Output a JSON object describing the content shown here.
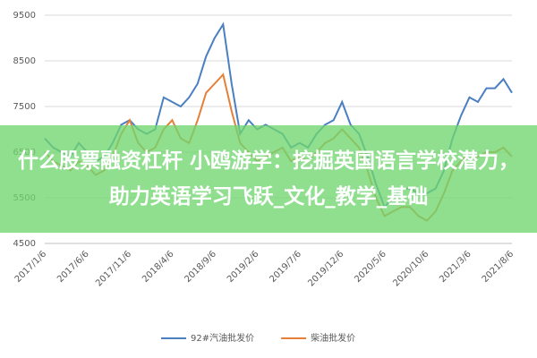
{
  "chart_data": {
    "type": "line",
    "categories": [
      "2017/1/6",
      null,
      null,
      null,
      null,
      "2017/6/6",
      null,
      null,
      null,
      null,
      "2017/11/6",
      null,
      null,
      null,
      null,
      "2018/4/6",
      null,
      null,
      null,
      null,
      "2018/9/6",
      null,
      null,
      null,
      null,
      "2019/2/6",
      null,
      null,
      null,
      null,
      "2019/7/6",
      null,
      null,
      null,
      null,
      "2019/12/6",
      null,
      null,
      null,
      null,
      "2020/5/6",
      null,
      null,
      null,
      null,
      "2020/10/6",
      null,
      null,
      null,
      null,
      "2021/3/6",
      null,
      null,
      null,
      null,
      "2021/8/6"
    ],
    "series": [
      {
        "name": "92#汽油批发价",
        "color": "#4a7fc1",
        "values": [
          6800,
          6600,
          6500,
          6400,
          6700,
          6500,
          6300,
          6400,
          6700,
          7100,
          7200,
          7000,
          6900,
          7000,
          7700,
          7600,
          7500,
          7700,
          8000,
          8600,
          9000,
          9300,
          8000,
          6900,
          7200,
          7000,
          7100,
          7000,
          6900,
          6600,
          6700,
          6600,
          6900,
          7100,
          7200,
          7600,
          7100,
          6900,
          6400,
          5800,
          5300,
          5500,
          5700,
          5700,
          5600,
          5600,
          5700,
          6100,
          6800,
          7300,
          7700,
          7600,
          7900,
          7900,
          8100,
          7800
        ]
      },
      {
        "name": "柴油批发价",
        "color": "#e4803a",
        "values": [
          6500,
          6300,
          6200,
          6100,
          6300,
          6200,
          6000,
          6100,
          6400,
          6900,
          7200,
          6700,
          6500,
          6600,
          7000,
          7200,
          6800,
          6700,
          7200,
          7800,
          8000,
          8200,
          7400,
          6700,
          6500,
          6300,
          6400,
          6500,
          6600,
          6300,
          6400,
          6300,
          6500,
          6700,
          6800,
          7000,
          6800,
          6600,
          6100,
          5500,
          5100,
          5200,
          5300,
          5300,
          5100,
          5000,
          5200,
          5600,
          6100,
          6300,
          6500,
          6400,
          6500,
          6500,
          6600,
          6400
        ]
      }
    ],
    "ylim": [
      4500,
      9500
    ],
    "yticks": [
      4500,
      5500,
      6500,
      7500,
      8500,
      9500
    ],
    "grid": true,
    "legend": "bottom"
  },
  "overlay": {
    "text": "什么股票融资杠杆 小鸥游学：挖掘英国语言学校潜力，助力英语学习飞跃_文化_教学_基础"
  }
}
